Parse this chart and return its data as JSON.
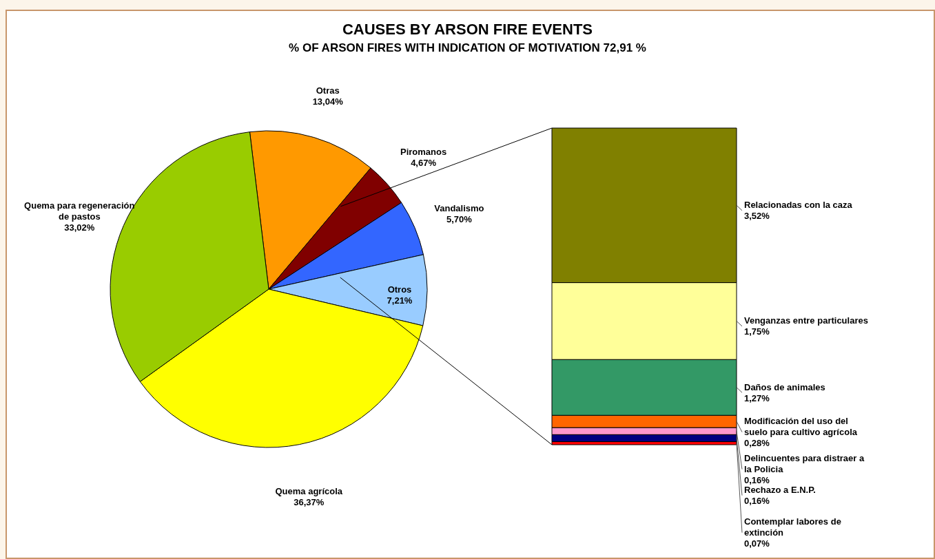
{
  "chart_data": [
    {
      "type": "pie",
      "title": "CAUSES BY ARSON FIRE EVENTS",
      "subtitle": "% OF ARSON FIRES WITH INDICATION OF MOTIVATION 72,91 %",
      "legend": false,
      "categories": [
        "Otras",
        "Piromanos",
        "Vandalismo",
        "Otros",
        "Quema agrícola",
        "Quema para regeneración de pastos"
      ],
      "values": [
        13.04,
        4.67,
        5.7,
        7.21,
        36.37,
        33.02
      ],
      "colors": [
        "#ff9900",
        "#800000",
        "#3366ff",
        "#99ccff",
        "#ffff00",
        "#99cc00"
      ],
      "value_labels": [
        "13,04%",
        "4,67%",
        "5,70%",
        "7,21%",
        "36,37%",
        "33,02%"
      ]
    },
    {
      "type": "bar",
      "stacked": true,
      "legend": false,
      "tick_labels": false,
      "categories": [
        null
      ],
      "series": [
        {
          "name": "Contemplar labores de extinción",
          "color": "#ff0000",
          "values": [
            0.07
          ],
          "value_labels": [
            "0,07%"
          ]
        },
        {
          "name": "Rechazo a E.N.P.",
          "color": "#000080",
          "values": [
            0.16
          ],
          "value_labels": [
            "0,16%"
          ]
        },
        {
          "name": "Delincuentes para distraer a la Policia",
          "color": "#ff99cc",
          "values": [
            0.16
          ],
          "value_labels": [
            "0,16%"
          ]
        },
        {
          "name": "Modificación del uso del suelo para cultivo agrícola",
          "color": "#ff6600",
          "values": [
            0.28
          ],
          "value_labels": [
            "0,28%"
          ]
        },
        {
          "name": "Daños de animales",
          "color": "#339966",
          "values": [
            1.27
          ],
          "value_labels": [
            "1,27%"
          ]
        },
        {
          "name": "Venganzas entre particulares",
          "color": "#ffff99",
          "values": [
            1.75
          ],
          "value_labels": [
            "1,75%"
          ]
        },
        {
          "name": "Relacionadas con la caza",
          "color": "#808000",
          "values": [
            3.52
          ],
          "value_labels": [
            "3,52%"
          ]
        }
      ]
    }
  ]
}
